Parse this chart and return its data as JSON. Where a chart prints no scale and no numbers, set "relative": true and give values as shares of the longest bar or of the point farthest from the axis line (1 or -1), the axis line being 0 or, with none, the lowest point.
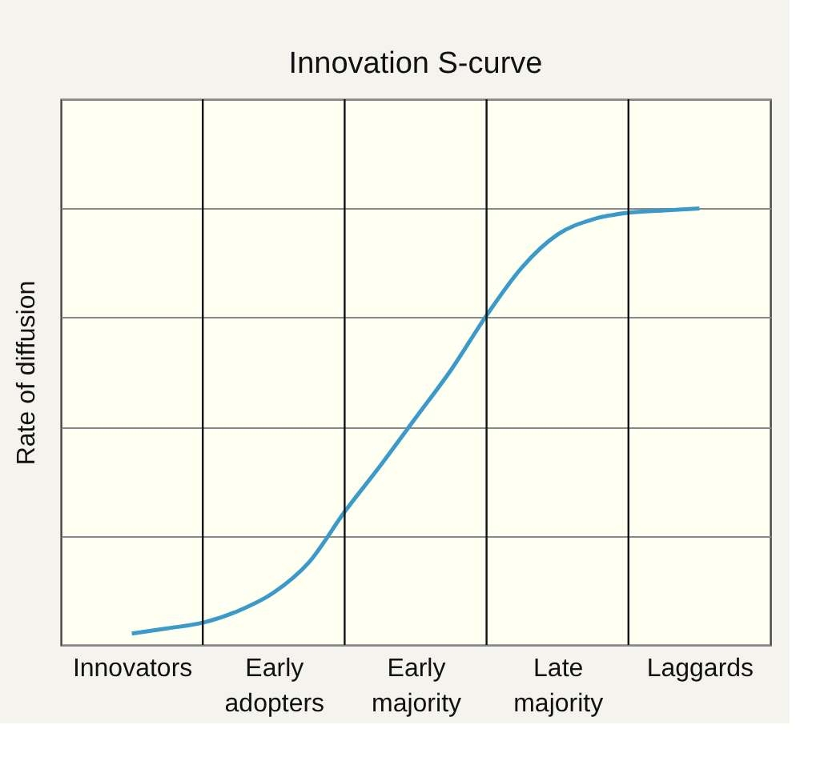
{
  "chart_data": {
    "type": "line",
    "title": "Innovation S-curve",
    "ylabel": "Rate of diffusion",
    "relative": true,
    "categories": [
      "Innovators",
      null,
      null,
      null,
      "Early adopters",
      null,
      null,
      null,
      "Early majority",
      null,
      null,
      null,
      "Late majority",
      null,
      null,
      null,
      "Laggards"
    ],
    "series": [
      {
        "color": "#3b9ac9",
        "values": [
          0.026,
          0.038,
          0.051,
          0.078,
          0.12,
          0.19,
          0.305,
          0.41,
          0.52,
          0.63,
          0.755,
          0.865,
          0.94,
          0.975,
          0.99,
          0.995,
          1.0
        ]
      }
    ],
    "grid": true,
    "legend": false,
    "marker": "none",
    "line_style": "solid"
  }
}
